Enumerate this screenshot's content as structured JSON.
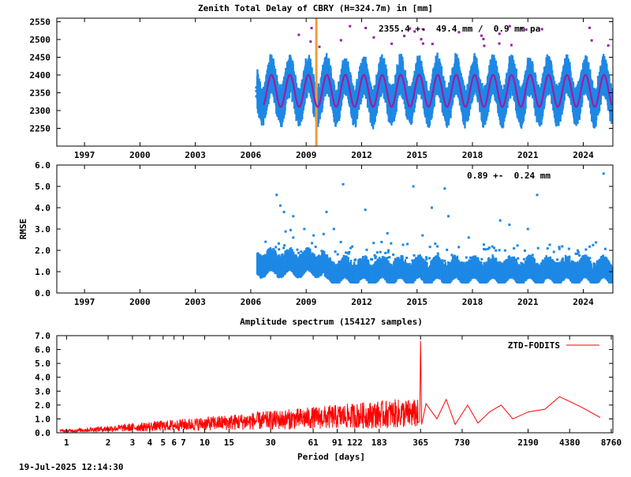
{
  "colors": {
    "ztd": "#1e88e5",
    "rmse": "#1e88e5",
    "model": "#9a1ea8",
    "marker": "#f39c3a",
    "spectrum": "#ff0000",
    "axis": "#000000"
  },
  "footer": {
    "timestamp": "19-Jul-2025 12:14:30"
  },
  "chart_data": [
    {
      "id": "ztd",
      "type": "scatter",
      "title": "Zenith Total Delay of CBRY (H=324.7m) in [mm]",
      "annotation": "2355.4 +-  49.4 mm /  0.9 mm pa",
      "xlabel": "",
      "ylabel": "",
      "xlim": [
        1995.5,
        2025.6
      ],
      "ylim": [
        2200,
        2560
      ],
      "xticks": [
        1997,
        2000,
        2003,
        2006,
        2009,
        2012,
        2015,
        2018,
        2021,
        2024
      ],
      "yticks": [
        2250,
        2300,
        2350,
        2400,
        2450,
        2500,
        2550
      ],
      "marker_year": 2009.55,
      "series": [
        {
          "kind": "ztd-seasonal",
          "start": 2006.35,
          "end": 2025.55,
          "mean": 2355.4,
          "amplitude": 45,
          "spread": 40,
          "phase_peak": 0.12
        },
        {
          "kind": "model-fit",
          "start": 2006.7,
          "end": 2025.55,
          "mean": 2355.4,
          "amplitude": 45,
          "phase_peak": 0.12
        }
      ],
      "early_points": [
        {
          "x": 2006.3,
          "y": 2355
        },
        {
          "x": 2006.3,
          "y": 2340
        },
        {
          "x": 2006.3,
          "y": 2365
        }
      ]
    },
    {
      "id": "rmse",
      "type": "scatter",
      "title": "",
      "annotation": "0.89 +-  0.24 mm",
      "xlabel": "",
      "ylabel": "RMSE",
      "xlim": [
        1995.5,
        2025.6
      ],
      "ylim": [
        0,
        6
      ],
      "xticks": [
        1997,
        2000,
        2003,
        2006,
        2009,
        2012,
        2015,
        2018,
        2021,
        2024
      ],
      "yticks": [
        0.0,
        1.0,
        2.0,
        3.0,
        4.0,
        5.0,
        6.0
      ],
      "ytick_labels": [
        "0.0",
        "1.0",
        "2.0",
        "3.0",
        "4.0",
        "5.0",
        "6.0"
      ],
      "series": [
        {
          "kind": "rmse-band",
          "start": 2006.35,
          "end": 2025.55,
          "mean": 0.89,
          "spread": 0.24
        }
      ],
      "outliers": [
        {
          "x": 2007.4,
          "y": 4.6
        },
        {
          "x": 2007.6,
          "y": 4.1
        },
        {
          "x": 2007.8,
          "y": 3.8
        },
        {
          "x": 2008.3,
          "y": 3.6
        },
        {
          "x": 2008.9,
          "y": 3.0
        },
        {
          "x": 2009.4,
          "y": 2.7
        },
        {
          "x": 2010.1,
          "y": 3.8
        },
        {
          "x": 2010.5,
          "y": 3.0
        },
        {
          "x": 2011.0,
          "y": 5.1
        },
        {
          "x": 2012.2,
          "y": 3.9
        },
        {
          "x": 2013.4,
          "y": 2.8
        },
        {
          "x": 2014.8,
          "y": 5.0
        },
        {
          "x": 2015.3,
          "y": 2.7
        },
        {
          "x": 2015.8,
          "y": 4.0
        },
        {
          "x": 2016.5,
          "y": 4.9
        },
        {
          "x": 2016.7,
          "y": 3.6
        },
        {
          "x": 2017.8,
          "y": 2.6
        },
        {
          "x": 2019.5,
          "y": 3.4
        },
        {
          "x": 2020.0,
          "y": 3.2
        },
        {
          "x": 2021.5,
          "y": 4.6
        },
        {
          "x": 2021.0,
          "y": 3.0
        },
        {
          "x": 2025.1,
          "y": 5.6
        }
      ]
    },
    {
      "id": "spectrum",
      "type": "line",
      "title": "Amplitude spectrum (154127 samples)",
      "xlabel": "Period [days]",
      "ylabel": "",
      "xscale": "log",
      "xlim": [
        0.85,
        9000
      ],
      "ylim": [
        0,
        7
      ],
      "xticks": [
        1,
        2,
        3,
        4,
        5,
        6,
        7,
        10,
        15,
        30,
        61,
        91,
        122,
        183,
        365,
        730,
        2190,
        4380,
        8760
      ],
      "yticks": [
        0.0,
        1.0,
        2.0,
        3.0,
        4.0,
        5.0,
        6.0,
        7.0
      ],
      "ytick_labels": [
        "0.0",
        "1.0",
        "2.0",
        "3.0",
        "4.0",
        "5.0",
        "6.0",
        "7.0"
      ],
      "legend": "ZTD-FODITS",
      "legend_position": "top-right",
      "annual_peak": {
        "x": 365,
        "y": 6.6
      },
      "tail": [
        {
          "x": 400,
          "y": 2.1
        },
        {
          "x": 480,
          "y": 1.0
        },
        {
          "x": 560,
          "y": 2.4
        },
        {
          "x": 650,
          "y": 0.6
        },
        {
          "x": 800,
          "y": 2.0
        },
        {
          "x": 950,
          "y": 0.7
        },
        {
          "x": 1150,
          "y": 1.5
        },
        {
          "x": 1400,
          "y": 2.0
        },
        {
          "x": 1700,
          "y": 1.0
        },
        {
          "x": 2200,
          "y": 1.5
        },
        {
          "x": 2900,
          "y": 1.7
        },
        {
          "x": 3700,
          "y": 2.6
        },
        {
          "x": 5200,
          "y": 1.9
        },
        {
          "x": 7300,
          "y": 1.1
        }
      ]
    }
  ]
}
